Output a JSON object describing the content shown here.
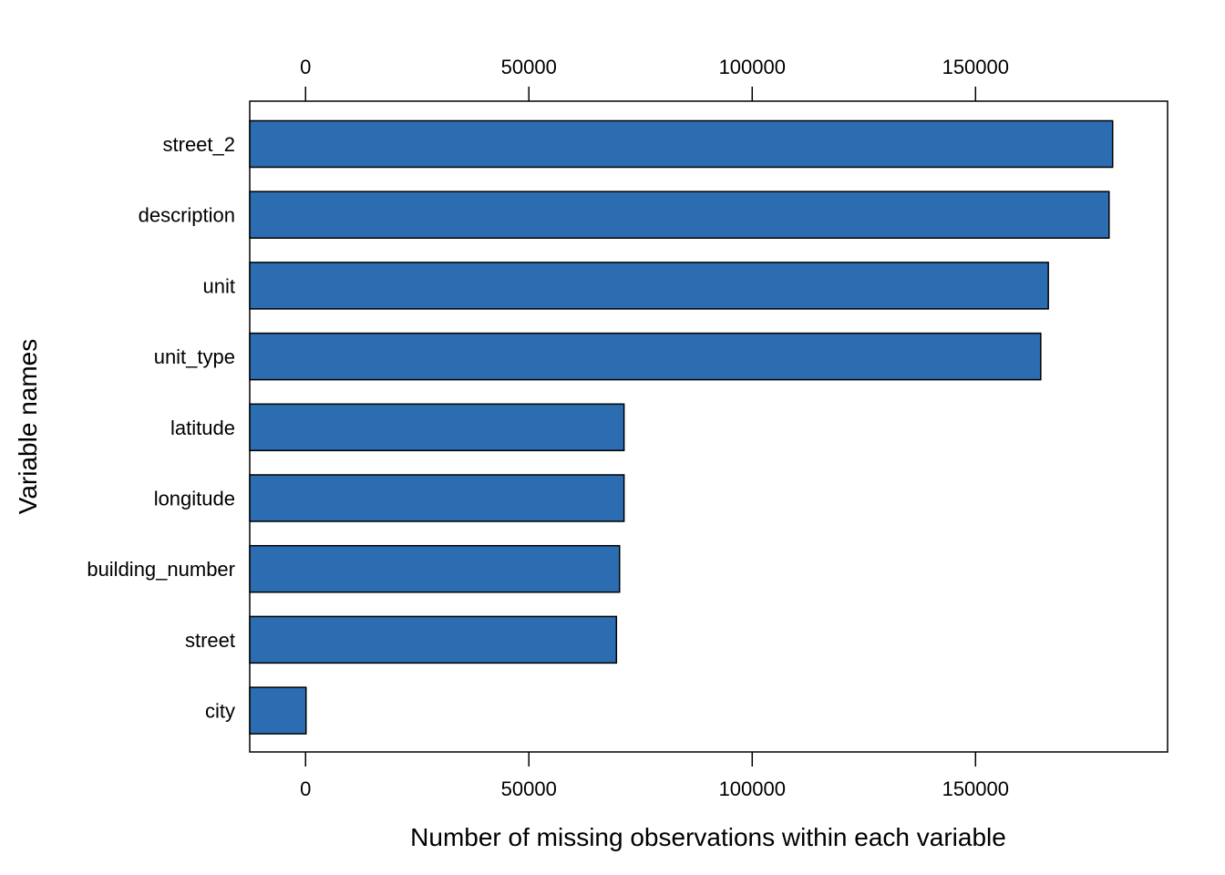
{
  "chart_data": {
    "type": "bar",
    "orientation": "horizontal",
    "categories": [
      "street_2",
      "description",
      "unit",
      "unit_type",
      "latitude",
      "longitude",
      "building_number",
      "street",
      "city"
    ],
    "values": [
      180700,
      179900,
      166300,
      164600,
      71300,
      71300,
      70300,
      69600,
      100
    ],
    "xlabel": "Number of missing observations within each variable",
    "ylabel": "Variable names",
    "xticks": [
      0,
      50000,
      100000,
      150000
    ],
    "xlim": [
      -12500,
      193000
    ],
    "bar_color": "#2B6DB0",
    "bar_edge_color": "#000000",
    "grid": false,
    "legend": "none"
  }
}
